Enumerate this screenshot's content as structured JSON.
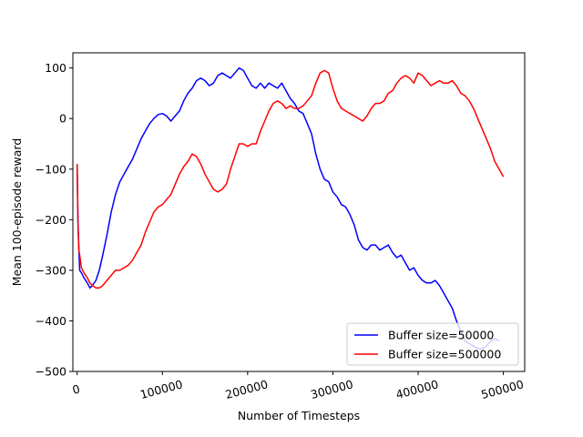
{
  "chart_data": {
    "type": "line",
    "title": "",
    "xlabel": "Number of Timesteps",
    "ylabel": "Mean 100-episode reward",
    "xlim": [
      -5000,
      525000
    ],
    "ylim": [
      -500,
      130
    ],
    "x_ticks": [
      0,
      100000,
      200000,
      300000,
      400000,
      500000
    ],
    "x_tick_labels": [
      "0",
      "100000",
      "200000",
      "300000",
      "400000",
      "500000"
    ],
    "y_ticks": [
      -500,
      -400,
      -300,
      -200,
      -100,
      0,
      100
    ],
    "y_tick_labels": [
      "−500",
      "−400",
      "−300",
      "−200",
      "−100",
      "0",
      "100"
    ],
    "grid": false,
    "legend_position": "lower-right",
    "series": [
      {
        "name": "Buffer size=50000",
        "color": "#0000ff",
        "x": [
          0,
          1000,
          2000,
          3000,
          5000,
          8000,
          12000,
          15000,
          18000,
          22000,
          26000,
          30000,
          35000,
          40000,
          45000,
          50000,
          55000,
          60000,
          65000,
          70000,
          75000,
          80000,
          85000,
          90000,
          95000,
          100000,
          105000,
          110000,
          115000,
          120000,
          125000,
          130000,
          135000,
          140000,
          145000,
          150000,
          155000,
          160000,
          165000,
          170000,
          175000,
          180000,
          185000,
          190000,
          195000,
          200000,
          205000,
          210000,
          215000,
          220000,
          225000,
          230000,
          235000,
          240000,
          245000,
          250000,
          255000,
          260000,
          265000,
          270000,
          275000,
          280000,
          285000,
          290000,
          295000,
          300000,
          305000,
          310000,
          315000,
          320000,
          325000,
          330000,
          335000,
          340000,
          345000,
          350000,
          355000,
          360000,
          365000,
          370000,
          375000,
          380000,
          385000,
          390000,
          395000,
          400000,
          405000,
          410000,
          415000,
          420000,
          425000,
          430000,
          435000,
          440000,
          445000,
          450000,
          455000,
          460000,
          465000,
          470000,
          475000,
          480000,
          485000,
          490000,
          495000
        ],
        "values": [
          -90,
          -200,
          -260,
          -300,
          -305,
          -315,
          -325,
          -335,
          -330,
          -320,
          -300,
          -270,
          -230,
          -185,
          -150,
          -125,
          -110,
          -95,
          -80,
          -60,
          -40,
          -25,
          -10,
          0,
          8,
          10,
          5,
          -5,
          5,
          15,
          35,
          50,
          60,
          75,
          80,
          75,
          65,
          70,
          85,
          90,
          85,
          80,
          90,
          100,
          95,
          80,
          65,
          60,
          70,
          60,
          70,
          65,
          60,
          70,
          55,
          40,
          30,
          15,
          10,
          -10,
          -30,
          -70,
          -100,
          -120,
          -125,
          -145,
          -155,
          -170,
          -175,
          -190,
          -210,
          -240,
          -255,
          -260,
          -250,
          -250,
          -260,
          -255,
          -250,
          -265,
          -275,
          -270,
          -285,
          -300,
          -295,
          -310,
          -320,
          -325,
          -325,
          -320,
          -330,
          -345,
          -360,
          -375,
          -400,
          -420,
          -440,
          -445,
          -450,
          -455,
          -455,
          -450,
          -440,
          -435,
          -440
        ]
      },
      {
        "name": "Buffer size=500000",
        "color": "#ff0000",
        "x": [
          0,
          1000,
          2000,
          3000,
          5000,
          8000,
          12000,
          15000,
          18000,
          22000,
          26000,
          30000,
          35000,
          40000,
          45000,
          50000,
          55000,
          60000,
          65000,
          70000,
          75000,
          80000,
          85000,
          90000,
          95000,
          100000,
          105000,
          110000,
          115000,
          120000,
          125000,
          130000,
          135000,
          140000,
          145000,
          150000,
          155000,
          160000,
          165000,
          170000,
          175000,
          180000,
          185000,
          190000,
          195000,
          200000,
          205000,
          210000,
          215000,
          220000,
          225000,
          230000,
          235000,
          240000,
          245000,
          250000,
          255000,
          260000,
          265000,
          270000,
          275000,
          280000,
          285000,
          290000,
          295000,
          300000,
          305000,
          310000,
          315000,
          320000,
          325000,
          330000,
          335000,
          340000,
          345000,
          350000,
          355000,
          360000,
          365000,
          370000,
          375000,
          380000,
          385000,
          390000,
          395000,
          400000,
          405000,
          410000,
          415000,
          420000,
          425000,
          430000,
          435000,
          440000,
          445000,
          450000,
          455000,
          460000,
          465000,
          470000,
          475000,
          480000,
          485000,
          490000,
          495000,
          500000
        ],
        "values": [
          -90,
          -210,
          -260,
          -270,
          -295,
          -305,
          -315,
          -325,
          -330,
          -335,
          -335,
          -330,
          -320,
          -310,
          -300,
          -300,
          -295,
          -290,
          -280,
          -265,
          -250,
          -225,
          -205,
          -185,
          -175,
          -170,
          -160,
          -150,
          -130,
          -110,
          -95,
          -85,
          -70,
          -75,
          -90,
          -110,
          -125,
          -140,
          -145,
          -140,
          -130,
          -100,
          -75,
          -50,
          -50,
          -55,
          -50,
          -50,
          -25,
          -5,
          15,
          30,
          35,
          30,
          20,
          25,
          20,
          20,
          25,
          35,
          45,
          70,
          90,
          95,
          90,
          60,
          35,
          20,
          15,
          10,
          5,
          0,
          -5,
          5,
          20,
          30,
          30,
          35,
          50,
          55,
          70,
          80,
          85,
          80,
          70,
          90,
          85,
          75,
          65,
          70,
          75,
          70,
          70,
          75,
          65,
          50,
          45,
          35,
          20,
          0,
          -20,
          -40,
          -60,
          -85,
          -100,
          -115
        ]
      }
    ]
  }
}
